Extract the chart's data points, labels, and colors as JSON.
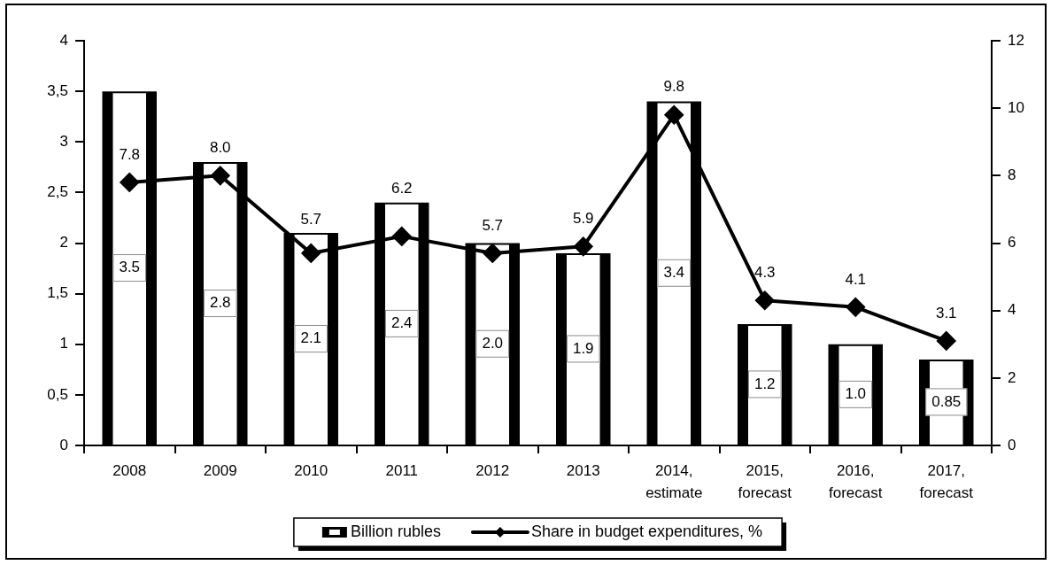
{
  "chart_data": {
    "type": "bar",
    "categories": [
      "2008",
      "2009",
      "2010",
      "2011",
      "2012",
      "2013",
      "2014, estimate",
      "2015, forecast",
      "2016, forecast",
      "2017, forecast"
    ],
    "series": [
      {
        "name": "Billion rubles",
        "color": "#000000",
        "values": [
          3.5,
          2.8,
          2.1,
          2.4,
          2.0,
          1.9,
          3.4,
          1.2,
          1.0,
          0.85
        ],
        "value_labels": [
          "3.5",
          "2.8",
          "2.1",
          "2.4",
          "2.0",
          "1.9",
          "3.4",
          "1.2",
          "1.0",
          "0.85"
        ]
      },
      {
        "type": "line",
        "name": "Share in budget expenditures, %",
        "color": "#000000",
        "axis": "y2",
        "values": [
          7.8,
          8.0,
          5.7,
          6.2,
          5.7,
          5.9,
          9.8,
          4.3,
          4.1,
          3.1
        ],
        "value_labels": [
          "7.8",
          "8.0",
          "5.7",
          "6.2",
          "5.7",
          "5.9",
          "9.8",
          "4.3",
          "4.1",
          "3.1"
        ]
      }
    ],
    "ylim": [
      0,
      4
    ],
    "yticks": [
      0,
      {
        "value": 0.5,
        "label": "0,5"
      },
      1,
      {
        "value": 1.5,
        "label": "1,5"
      },
      2,
      {
        "value": 2.5,
        "label": "2,5"
      },
      3,
      {
        "value": 3.5,
        "label": "3,5"
      },
      4
    ],
    "y2lim": [
      0,
      12
    ],
    "y2ticks": [
      0,
      2,
      4,
      6,
      8,
      10,
      12
    ],
    "legend": "bottom",
    "marker": "diamond",
    "line_style": "solid"
  }
}
